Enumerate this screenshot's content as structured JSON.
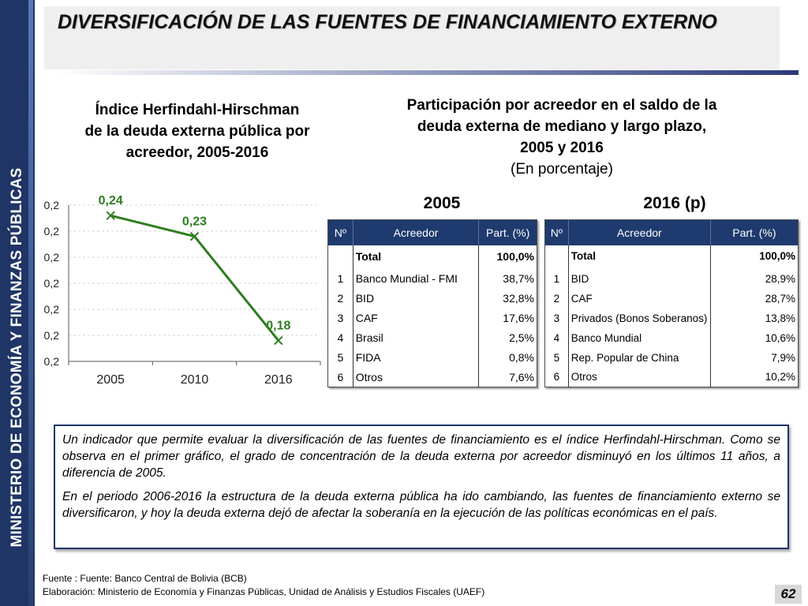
{
  "side_label": "MINISTERIO DE ECONOMÍA Y FINANZAS PÚBLICAS",
  "header": {
    "title": "DIVERSIFICACIÓN DE LAS FUENTES DE FINANCIAMIENTO EXTERNO"
  },
  "hhi": {
    "title_line1": "Índice Herfindahl-Hirschman",
    "title_line2": "de la deuda externa pública por",
    "title_line3": "acreedor, 2005-2016"
  },
  "participation": {
    "title_line1": "Participación por acreedor en el saldo de la",
    "title_line2": "deuda externa de mediano y largo plazo,",
    "title_line3": "2005 y 2016",
    "subtitle": "(En porcentaje)"
  },
  "chart_data": {
    "type": "line",
    "categories": [
      "2005",
      "2010",
      "2016"
    ],
    "series": [
      {
        "values": [
          0.24,
          0.23,
          0.18
        ]
      }
    ],
    "data_labels": [
      "0,24",
      "0,23",
      "0,18"
    ],
    "ytick_labels": [
      "0,2",
      "0,2",
      "0,2",
      "0,2",
      "0,2",
      "0,2",
      "0,2"
    ],
    "ylim": [
      0.17,
      0.245
    ],
    "grid": true,
    "color": "#2e7d1f",
    "marker": "x"
  },
  "table_2005": {
    "year": "2005",
    "headers": [
      "Nº",
      "Acreedor",
      "Part. (%)"
    ],
    "total": {
      "label": "Total",
      "value": "100,0%"
    },
    "rows": [
      {
        "n": "1",
        "name": "Banco Mundial - FMI",
        "value": "38,7%"
      },
      {
        "n": "2",
        "name": "BID",
        "value": "32,8%"
      },
      {
        "n": "3",
        "name": "CAF",
        "value": "17,6%"
      },
      {
        "n": "4",
        "name": "Brasil",
        "value": "2,5%"
      },
      {
        "n": "5",
        "name": "FIDA",
        "value": "0,8%"
      },
      {
        "n": "6",
        "name": "Otros",
        "value": "7,6%"
      }
    ]
  },
  "table_2016": {
    "year": "2016 (p)",
    "headers": [
      "Nº",
      "Acreedor",
      "Part. (%)"
    ],
    "total": {
      "label": "Total",
      "value": "100,0%"
    },
    "rows": [
      {
        "n": "1",
        "name": "BID",
        "value": "28,9%"
      },
      {
        "n": "2",
        "name": "CAF",
        "value": "28,7%"
      },
      {
        "n": "3",
        "name": "Privados (Bonos Soberanos)",
        "value": "13,8%"
      },
      {
        "n": "4",
        "name": "Banco Mundial",
        "value": "10,6%"
      },
      {
        "n": "5",
        "name": "Rep. Popular de China",
        "value": "7,9%"
      },
      {
        "n": "6",
        "name": "Otros",
        "value": "10,2%"
      }
    ]
  },
  "textbox": {
    "p1": "Un indicador que permite evaluar la diversificación de las fuentes de financiamiento es el índice Herfindahl-Hirschman. Como se observa en el primer gráfico, el grado de concentración de la deuda externa por acreedor disminuyó en los últimos 11 años, a diferencia de 2005.",
    "p2": "En el periodo 2006-2016 la estructura de la deuda externa pública ha ido cambiando, las fuentes de financiamiento externo se diversificaron, y hoy la deuda externa dejó de afectar la soberanía en la ejecución de las políticas económicas en el país."
  },
  "footer": {
    "source": "Fuente : Fuente: Banco Central de Bolivia (BCB)",
    "elaboration": "Elaboración: Ministerio de Economía y Finanzas Públicas, Unidad de Análisis y Estudios Fiscales (UAEF)",
    "page": "62"
  }
}
